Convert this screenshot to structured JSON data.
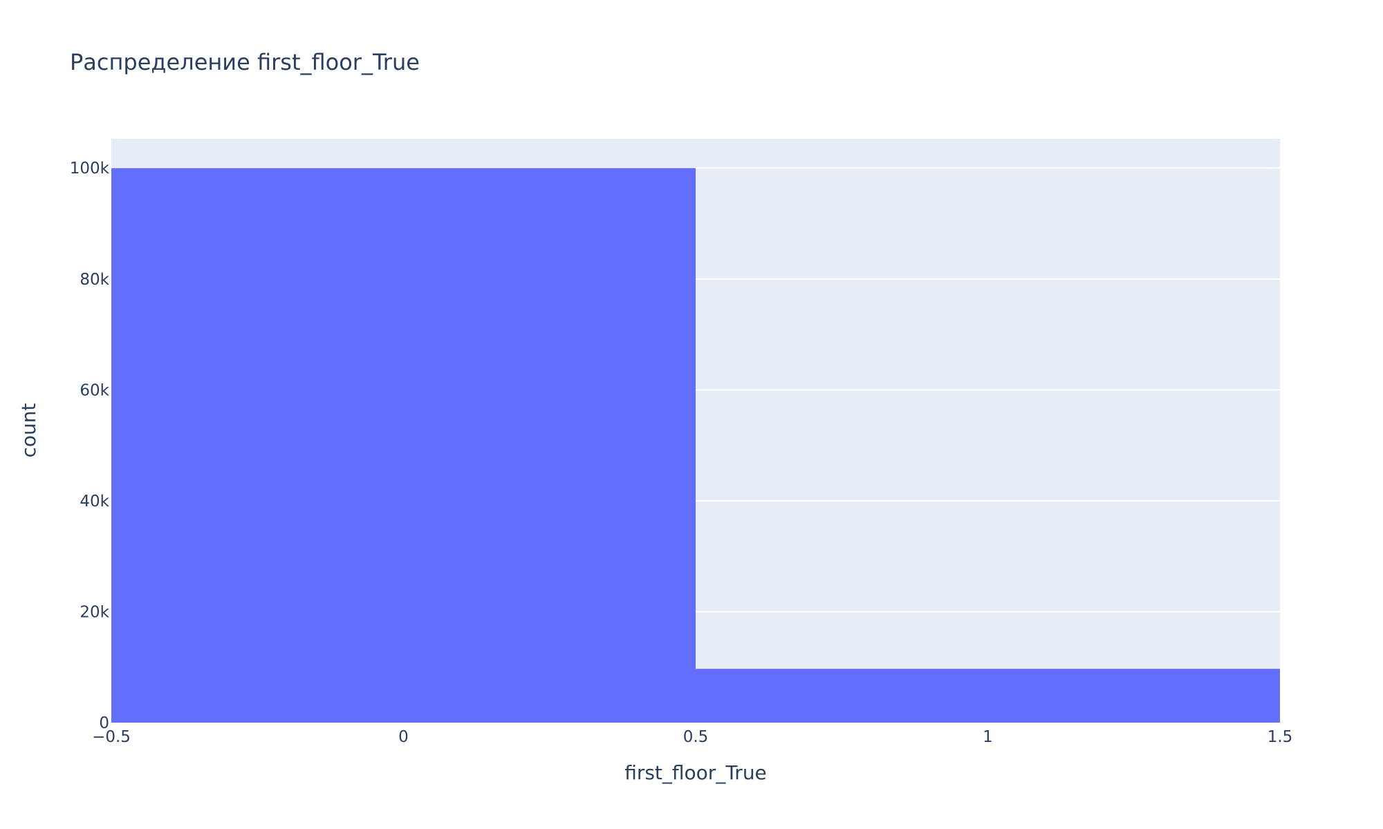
{
  "colors": {
    "plot_background": "#e5ecf6",
    "grid": "#ffffff",
    "bar": "#636efa",
    "text": "#2a3f5f"
  },
  "chart_data": {
    "type": "bar",
    "title": "Распределение first_floor_True",
    "xlabel": "first_floor_True",
    "ylabel": "count",
    "bins": [
      {
        "x_start": -0.5,
        "x_end": 0.5,
        "value": 100000
      },
      {
        "x_start": 0.5,
        "x_end": 1.5,
        "value": 9700
      }
    ],
    "xlim": [
      -0.5,
      1.5
    ],
    "ylim": [
      0,
      105263
    ],
    "x_ticks": [
      {
        "value": -0.5,
        "label": "−0.5"
      },
      {
        "value": 0,
        "label": "0"
      },
      {
        "value": 0.5,
        "label": "0.5"
      },
      {
        "value": 1,
        "label": "1"
      },
      {
        "value": 1.5,
        "label": "1.5"
      }
    ],
    "y_ticks": [
      {
        "value": 0,
        "label": "0"
      },
      {
        "value": 20000,
        "label": "20k"
      },
      {
        "value": 40000,
        "label": "40k"
      },
      {
        "value": 60000,
        "label": "60k"
      },
      {
        "value": 80000,
        "label": "80k"
      },
      {
        "value": 100000,
        "label": "100k"
      }
    ],
    "grid": true,
    "legend": "none"
  }
}
